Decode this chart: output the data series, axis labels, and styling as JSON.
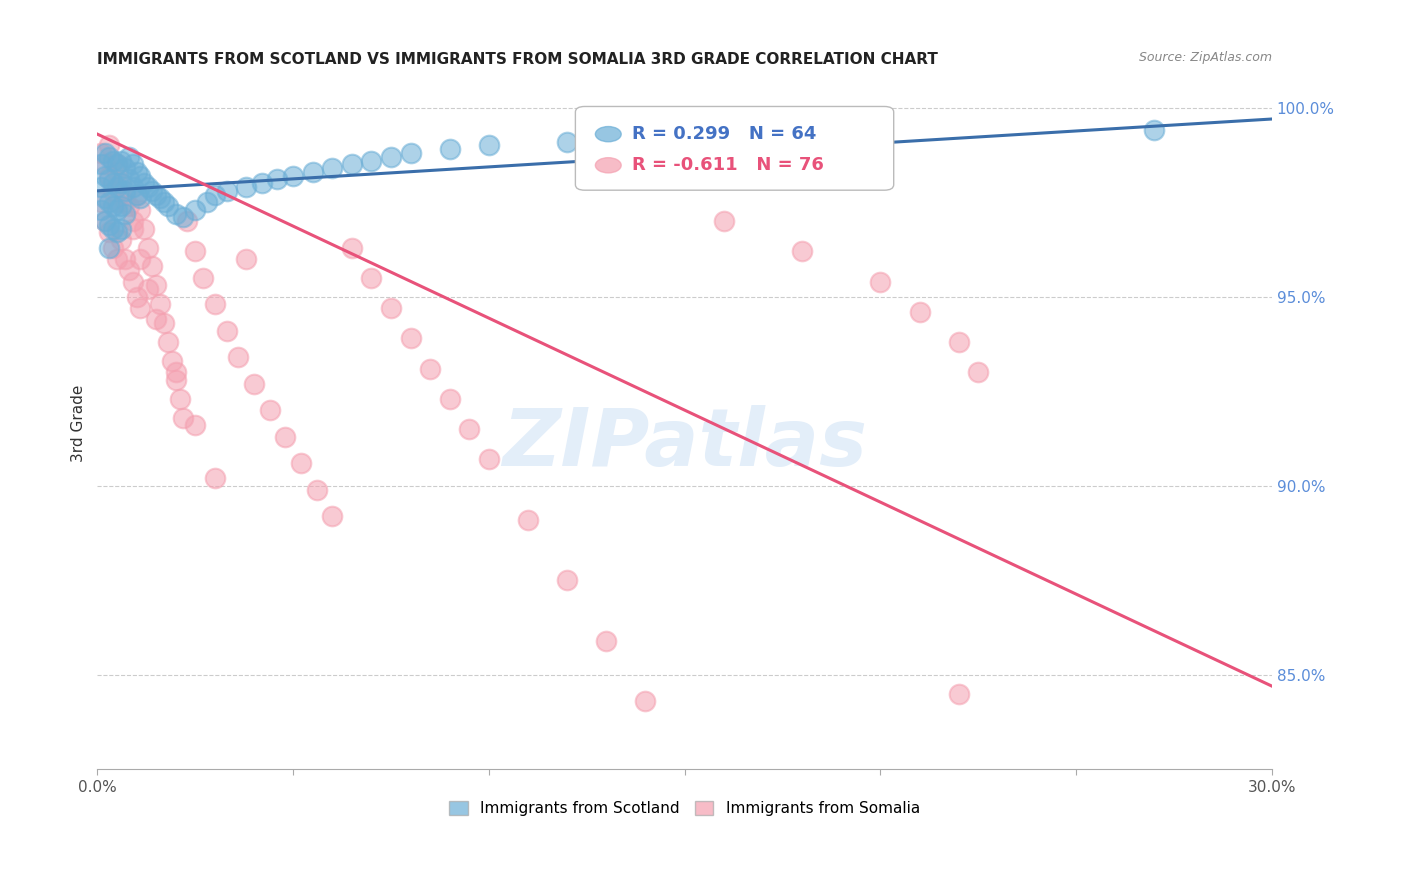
{
  "title": "IMMIGRANTS FROM SCOTLAND VS IMMIGRANTS FROM SOMALIA 3RD GRADE CORRELATION CHART",
  "source": "Source: ZipAtlas.com",
  "ylabel": "3rd Grade",
  "ylabel_right_ticks": [
    "100.0%",
    "95.0%",
    "90.0%",
    "85.0%"
  ],
  "ylabel_right_vals": [
    1.0,
    0.95,
    0.9,
    0.85
  ],
  "xlim": [
    0.0,
    0.3
  ],
  "ylim": [
    0.825,
    1.008
  ],
  "legend_r_scotland": "R = 0.299",
  "legend_n_scotland": "N = 64",
  "legend_r_somalia": "R = -0.611",
  "legend_n_somalia": "N = 76",
  "color_scotland": "#6baed6",
  "color_somalia": "#f4a0b0",
  "color_line_scotland": "#3a6eaa",
  "color_line_somalia": "#e8527a",
  "watermark": "ZIPatlas",
  "scotland_x": [
    0.001,
    0.001,
    0.001,
    0.002,
    0.002,
    0.002,
    0.002,
    0.003,
    0.003,
    0.003,
    0.003,
    0.003,
    0.004,
    0.004,
    0.004,
    0.004,
    0.005,
    0.005,
    0.005,
    0.005,
    0.006,
    0.006,
    0.006,
    0.006,
    0.007,
    0.007,
    0.007,
    0.008,
    0.008,
    0.009,
    0.009,
    0.01,
    0.01,
    0.011,
    0.011,
    0.012,
    0.013,
    0.014,
    0.015,
    0.016,
    0.017,
    0.018,
    0.02,
    0.022,
    0.025,
    0.028,
    0.03,
    0.033,
    0.038,
    0.042,
    0.046,
    0.05,
    0.055,
    0.06,
    0.065,
    0.07,
    0.075,
    0.08,
    0.09,
    0.1,
    0.12,
    0.15,
    0.2,
    0.27
  ],
  "scotland_y": [
    0.985,
    0.979,
    0.973,
    0.988,
    0.982,
    0.976,
    0.97,
    0.987,
    0.981,
    0.975,
    0.969,
    0.963,
    0.986,
    0.98,
    0.974,
    0.968,
    0.985,
    0.979,
    0.973,
    0.967,
    0.986,
    0.98,
    0.974,
    0.968,
    0.984,
    0.978,
    0.972,
    0.987,
    0.981,
    0.985,
    0.979,
    0.983,
    0.977,
    0.982,
    0.976,
    0.98,
    0.979,
    0.978,
    0.977,
    0.976,
    0.975,
    0.974,
    0.972,
    0.971,
    0.973,
    0.975,
    0.977,
    0.978,
    0.979,
    0.98,
    0.981,
    0.982,
    0.983,
    0.984,
    0.985,
    0.986,
    0.987,
    0.988,
    0.989,
    0.99,
    0.991,
    0.992,
    0.993,
    0.994
  ],
  "somalia_x": [
    0.001,
    0.001,
    0.002,
    0.002,
    0.003,
    0.003,
    0.004,
    0.004,
    0.005,
    0.005,
    0.005,
    0.006,
    0.006,
    0.007,
    0.007,
    0.008,
    0.008,
    0.009,
    0.009,
    0.01,
    0.01,
    0.011,
    0.011,
    0.012,
    0.013,
    0.014,
    0.015,
    0.016,
    0.017,
    0.018,
    0.019,
    0.02,
    0.021,
    0.022,
    0.023,
    0.025,
    0.027,
    0.03,
    0.033,
    0.036,
    0.04,
    0.044,
    0.048,
    0.052,
    0.056,
    0.06,
    0.065,
    0.07,
    0.075,
    0.08,
    0.085,
    0.09,
    0.095,
    0.1,
    0.11,
    0.12,
    0.13,
    0.14,
    0.16,
    0.18,
    0.2,
    0.21,
    0.22,
    0.225,
    0.003,
    0.005,
    0.007,
    0.009,
    0.011,
    0.013,
    0.015,
    0.02,
    0.025,
    0.03,
    0.038,
    0.22
  ],
  "somalia_y": [
    0.988,
    0.975,
    0.985,
    0.97,
    0.982,
    0.967,
    0.978,
    0.963,
    0.985,
    0.975,
    0.96,
    0.98,
    0.965,
    0.977,
    0.96,
    0.974,
    0.957,
    0.97,
    0.954,
    0.977,
    0.95,
    0.973,
    0.947,
    0.968,
    0.963,
    0.958,
    0.953,
    0.948,
    0.943,
    0.938,
    0.933,
    0.928,
    0.923,
    0.918,
    0.97,
    0.962,
    0.955,
    0.948,
    0.941,
    0.934,
    0.927,
    0.92,
    0.913,
    0.906,
    0.899,
    0.892,
    0.963,
    0.955,
    0.947,
    0.939,
    0.931,
    0.923,
    0.915,
    0.907,
    0.891,
    0.875,
    0.859,
    0.843,
    0.97,
    0.962,
    0.954,
    0.946,
    0.938,
    0.93,
    0.99,
    0.983,
    0.975,
    0.968,
    0.96,
    0.952,
    0.944,
    0.93,
    0.916,
    0.902,
    0.96,
    0.845
  ],
  "somalia_line_x0": 0.0,
  "somalia_line_y0": 0.993,
  "somalia_line_x1": 0.3,
  "somalia_line_y1": 0.847,
  "scotland_line_x0": 0.0,
  "scotland_line_y0": 0.978,
  "scotland_line_x1": 0.3,
  "scotland_line_y1": 0.997
}
